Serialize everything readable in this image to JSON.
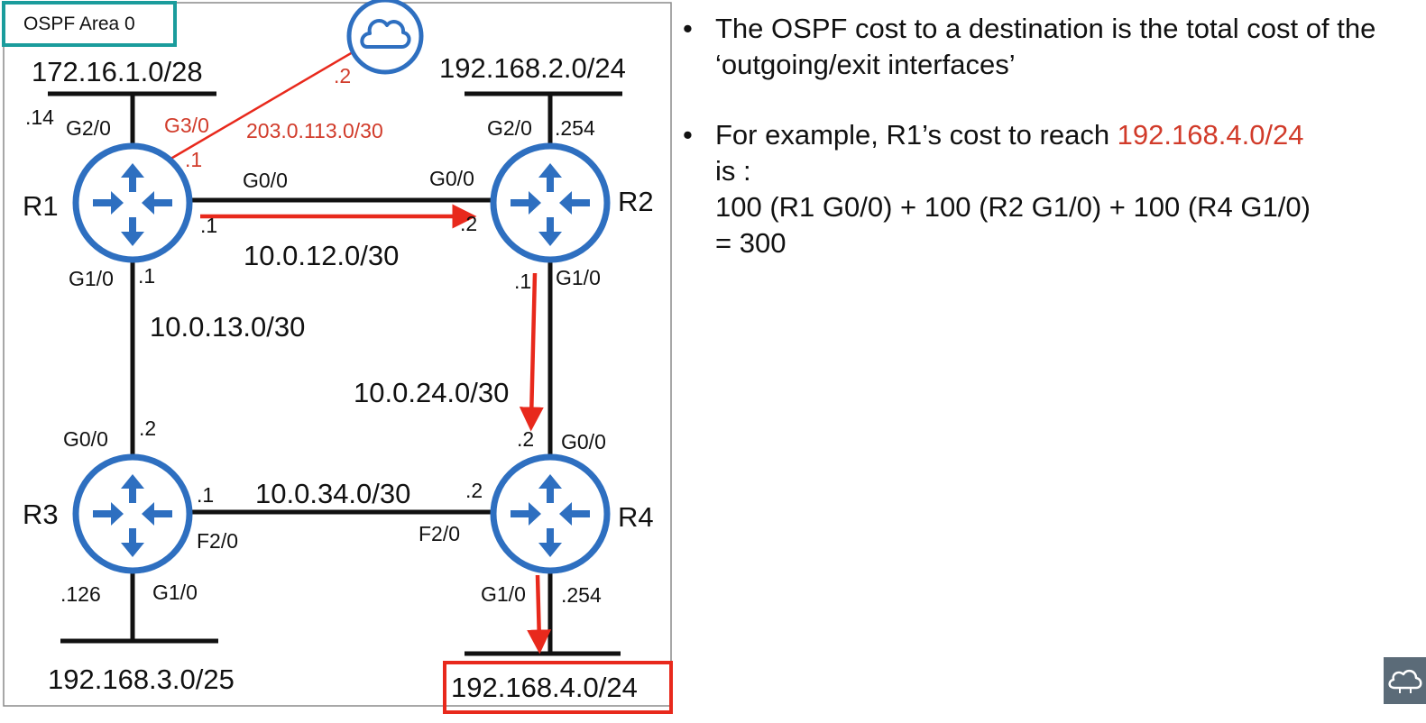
{
  "area_label": "OSPF Area 0",
  "colors": {
    "router": "#2e6fc0",
    "highlight": "#e8291c",
    "area_box": "#1a9c9c",
    "subnet_red": "#d13b2a"
  },
  "routers": [
    {
      "id": "R1",
      "label": "R1"
    },
    {
      "id": "R2",
      "label": "R2"
    },
    {
      "id": "R3",
      "label": "R3"
    },
    {
      "id": "R4",
      "label": "R4"
    }
  ],
  "subnets": {
    "r1_lan": "172.16.1.0/28",
    "r2_lan": "192.168.2.0/24",
    "r3_lan": "192.168.3.0/25",
    "r4_lan": "192.168.4.0/24",
    "r1_r2": "10.0.12.0/30",
    "r1_r3": "10.0.13.0/30",
    "r2_r4": "10.0.24.0/30",
    "r3_r4": "10.0.34.0/30",
    "r1_internet": "203.0.113.0/30"
  },
  "interfaces": {
    "r1_g2_0": "G2/0",
    "r1_g2_0_ip": ".14",
    "r1_g3_0": "G3/0",
    "r1_g3_0_ip": ".1",
    "r1_g0_0": "G0/0",
    "r1_g0_0_ip": ".1",
    "r1_g1_0": "G1/0",
    "r1_g1_0_ip": ".1",
    "cloud_ip": ".2",
    "r2_g2_0": "G2/0",
    "r2_g2_0_ip": ".254",
    "r2_g0_0": "G0/0",
    "r2_g0_0_ip": ".2",
    "r2_g1_0": "G1/0",
    "r2_g1_0_ip": ".1",
    "r3_g0_0": "G0/0",
    "r3_g0_0_ip": ".2",
    "r3_f2_0": "F2/0",
    "r3_f2_0_ip": ".1",
    "r3_g1_0": "G1/0",
    "r3_g1_0_ip": ".126",
    "r4_g0_0": "G0/0",
    "r4_g0_0_ip": ".2",
    "r4_f2_0": "F2/0",
    "r4_f2_0_ip": ".2",
    "r4_g1_0": "G1/0",
    "r4_g1_0_ip": ".254"
  },
  "icons": {
    "cloud": "cloud-icon",
    "router": "router-icon",
    "logo": "cloud-network-logo-icon"
  },
  "notes": {
    "bullet_glyph": "•",
    "bullet1": "The OSPF cost to a destination is the total cost of the ‘outgoing/exit interfaces’",
    "bullet2_pre": "For example, R1’s cost to reach ",
    "bullet2_dest": "192.168.4.0/24",
    "bullet2_is": "is :",
    "bullet2_calc": "100 (R1 G0/0) + 100 (R2 G1/0) + 100 (R4 G1/0)",
    "bullet2_result": "= 300"
  }
}
